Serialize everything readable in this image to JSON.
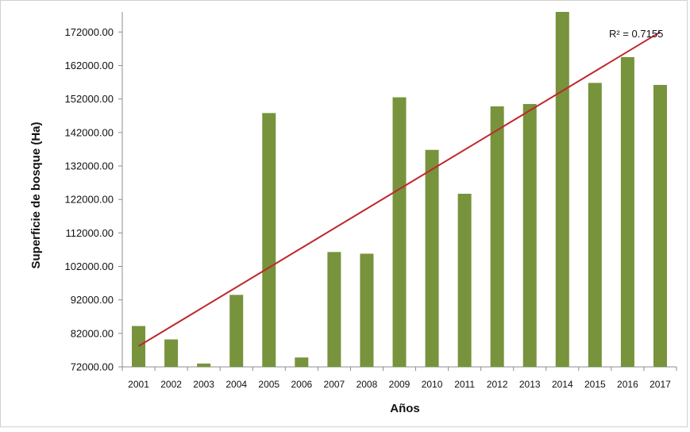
{
  "chart_data": {
    "type": "bar",
    "categories": [
      "2001",
      "2002",
      "2003",
      "2004",
      "2005",
      "2006",
      "2007",
      "2008",
      "2009",
      "2010",
      "2011",
      "2012",
      "2013",
      "2014",
      "2015",
      "2016",
      "2017"
    ],
    "series": [
      {
        "values": [
          84200,
          80200,
          73000,
          93500,
          147800,
          74800,
          106300,
          105800,
          152500,
          136800,
          123700,
          149800,
          150500,
          179000,
          156800,
          164500,
          156200
        ]
      }
    ],
    "trendline": {
      "type": "linear",
      "start": 78200,
      "end": 172000,
      "r2_label": "R² = 0.7155",
      "color": "#c0272d"
    },
    "xlabel": "Años",
    "ylabel": "Superficie de bosque (Ha)",
    "ylim": [
      72000,
      178000
    ],
    "yticks": [
      72000,
      82000,
      92000,
      102000,
      112000,
      122000,
      132000,
      142000,
      152000,
      162000,
      172000
    ],
    "ytick_labels": [
      "72000.00",
      "82000.00",
      "92000.00",
      "102000.00",
      "112000.00",
      "122000.00",
      "132000.00",
      "142000.00",
      "152000.00",
      "162000.00",
      "172000.00"
    ],
    "grid": false,
    "legend": "none",
    "bar_color": "#77933c"
  }
}
